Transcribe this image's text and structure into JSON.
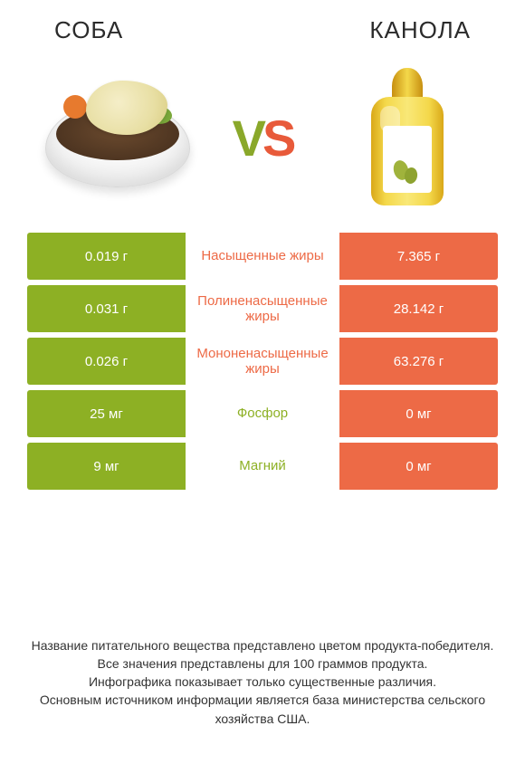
{
  "colors": {
    "green": "#8db024",
    "orange": "#ed6a46",
    "text": "#333333",
    "background": "#ffffff"
  },
  "header": {
    "left_title": "СОБА",
    "right_title": "КАНОЛА",
    "vs_v": "V",
    "vs_s": "S"
  },
  "table": {
    "rows": [
      {
        "left": "0.019 г",
        "label": "Насыщенные жиры",
        "right": "7.365 г",
        "winner": "right"
      },
      {
        "left": "0.031 г",
        "label": "Полиненасыщенные жиры",
        "right": "28.142 г",
        "winner": "right"
      },
      {
        "left": "0.026 г",
        "label": "Мононенасыщенные жиры",
        "right": "63.276 г",
        "winner": "right"
      },
      {
        "left": "25 мг",
        "label": "Фосфор",
        "right": "0 мг",
        "winner": "left"
      },
      {
        "left": "9 мг",
        "label": "Магний",
        "right": "0 мг",
        "winner": "left"
      }
    ]
  },
  "footnote": {
    "line1": "Название питательного вещества представлено цветом продукта-победителя.",
    "line2": "Все значения представлены для 100 граммов продукта.",
    "line3": "Инфографика показывает только существенные различия.",
    "line4": "Основным источником информации является база министерства сельского хозяйства США."
  }
}
